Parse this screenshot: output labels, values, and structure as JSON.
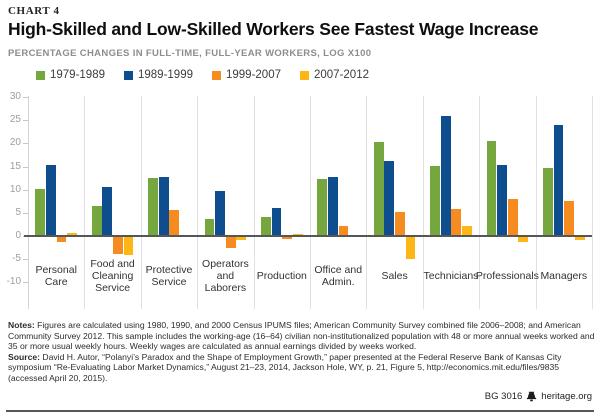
{
  "header": {
    "chart_label": "CHART 4",
    "title": "High-Skilled and Low-Skilled Workers See Fastest Wage Increase",
    "subtitle": "PERCENTAGE CHANGES IN FULL-TIME, FULL-YEAR WORKERS, LOG X100"
  },
  "chart_data": {
    "type": "bar",
    "title": "High-Skilled and Low-Skilled Workers See Fastest Wage Increase",
    "xlabel": "",
    "ylabel": "Percentage changes in full-time, full-year workers, log x100",
    "ylim": [
      -10,
      30
    ],
    "yticks": [
      30,
      25,
      20,
      15,
      10,
      5,
      0,
      -5,
      -10
    ],
    "grid": "vertical category separators, no horizontal gridlines",
    "legend_position": "top",
    "categories": [
      "Personal Care",
      "Food and Cleaning Service",
      "Protective Service",
      "Operators and Laborers",
      "Production",
      "Office and Admin.",
      "Sales",
      "Technicians",
      "Professionals",
      "Managers"
    ],
    "category_lines": [
      [
        "Personal",
        "Care"
      ],
      [
        "Food and",
        "Cleaning",
        "Service"
      ],
      [
        "Protective",
        "Service"
      ],
      [
        "Operators",
        "and Laborers"
      ],
      [
        "Production"
      ],
      [
        "Office and",
        "Admin."
      ],
      [
        "Sales"
      ],
      [
        "Technicians"
      ],
      [
        "Professionals"
      ],
      [
        "Managers"
      ]
    ],
    "series": [
      {
        "name": "1979-1989",
        "color": "#76a73e",
        "values": [
          10.2,
          6.4,
          12.5,
          3.7,
          4.0,
          12.2,
          20.3,
          15.1,
          20.6,
          14.6
        ]
      },
      {
        "name": "1989-1999",
        "color": "#0e4e8e",
        "values": [
          15.4,
          10.6,
          12.7,
          9.8,
          6.1,
          12.8,
          16.2,
          26.0,
          15.4,
          24.0
        ]
      },
      {
        "name": "1999-2007",
        "color": "#f68b1f",
        "values": [
          -1.4,
          -3.8,
          5.6,
          -2.6,
          -0.6,
          2.1,
          5.1,
          5.8,
          8.0,
          7.6
        ]
      },
      {
        "name": "2007-2012",
        "color": "#fdb714",
        "values": [
          0.6,
          -4.1,
          0.1,
          -0.9,
          0.4,
          0.1,
          -5.0,
          2.1,
          -1.4,
          -0.9
        ]
      }
    ]
  },
  "footnotes": {
    "notes_label": "Notes:",
    "notes_text": " Figures are calculated using 1980, 1990, and 2000 Census IPUMS files; American Community Survey combined file 2006–2008; and American Community Survey 2012. This sample includes the working-age (16–64) civilian non-institutionalized population with 48 or more annual weeks worked and 35 or more usual weekly hours. Weekly wages are calculated as annual earnings divided by weeks worked.",
    "source_label": "Source:",
    "source_text": " David H. Autor, “Polanyi’s Paradox and the Shape of Employment Growth,” paper presented at the Federal Reserve Bank of Kansas City symposium “Re-Evaluating Labor Market Dynamics,” August 21–23, 2014, Jackson Hole, WY, p. 21, Figure 5, http://economics.mit.edu/files/9835 (accessed April 20, 2015)."
  },
  "footer": {
    "report_id": "BG 3016",
    "site": "heritage.org"
  }
}
